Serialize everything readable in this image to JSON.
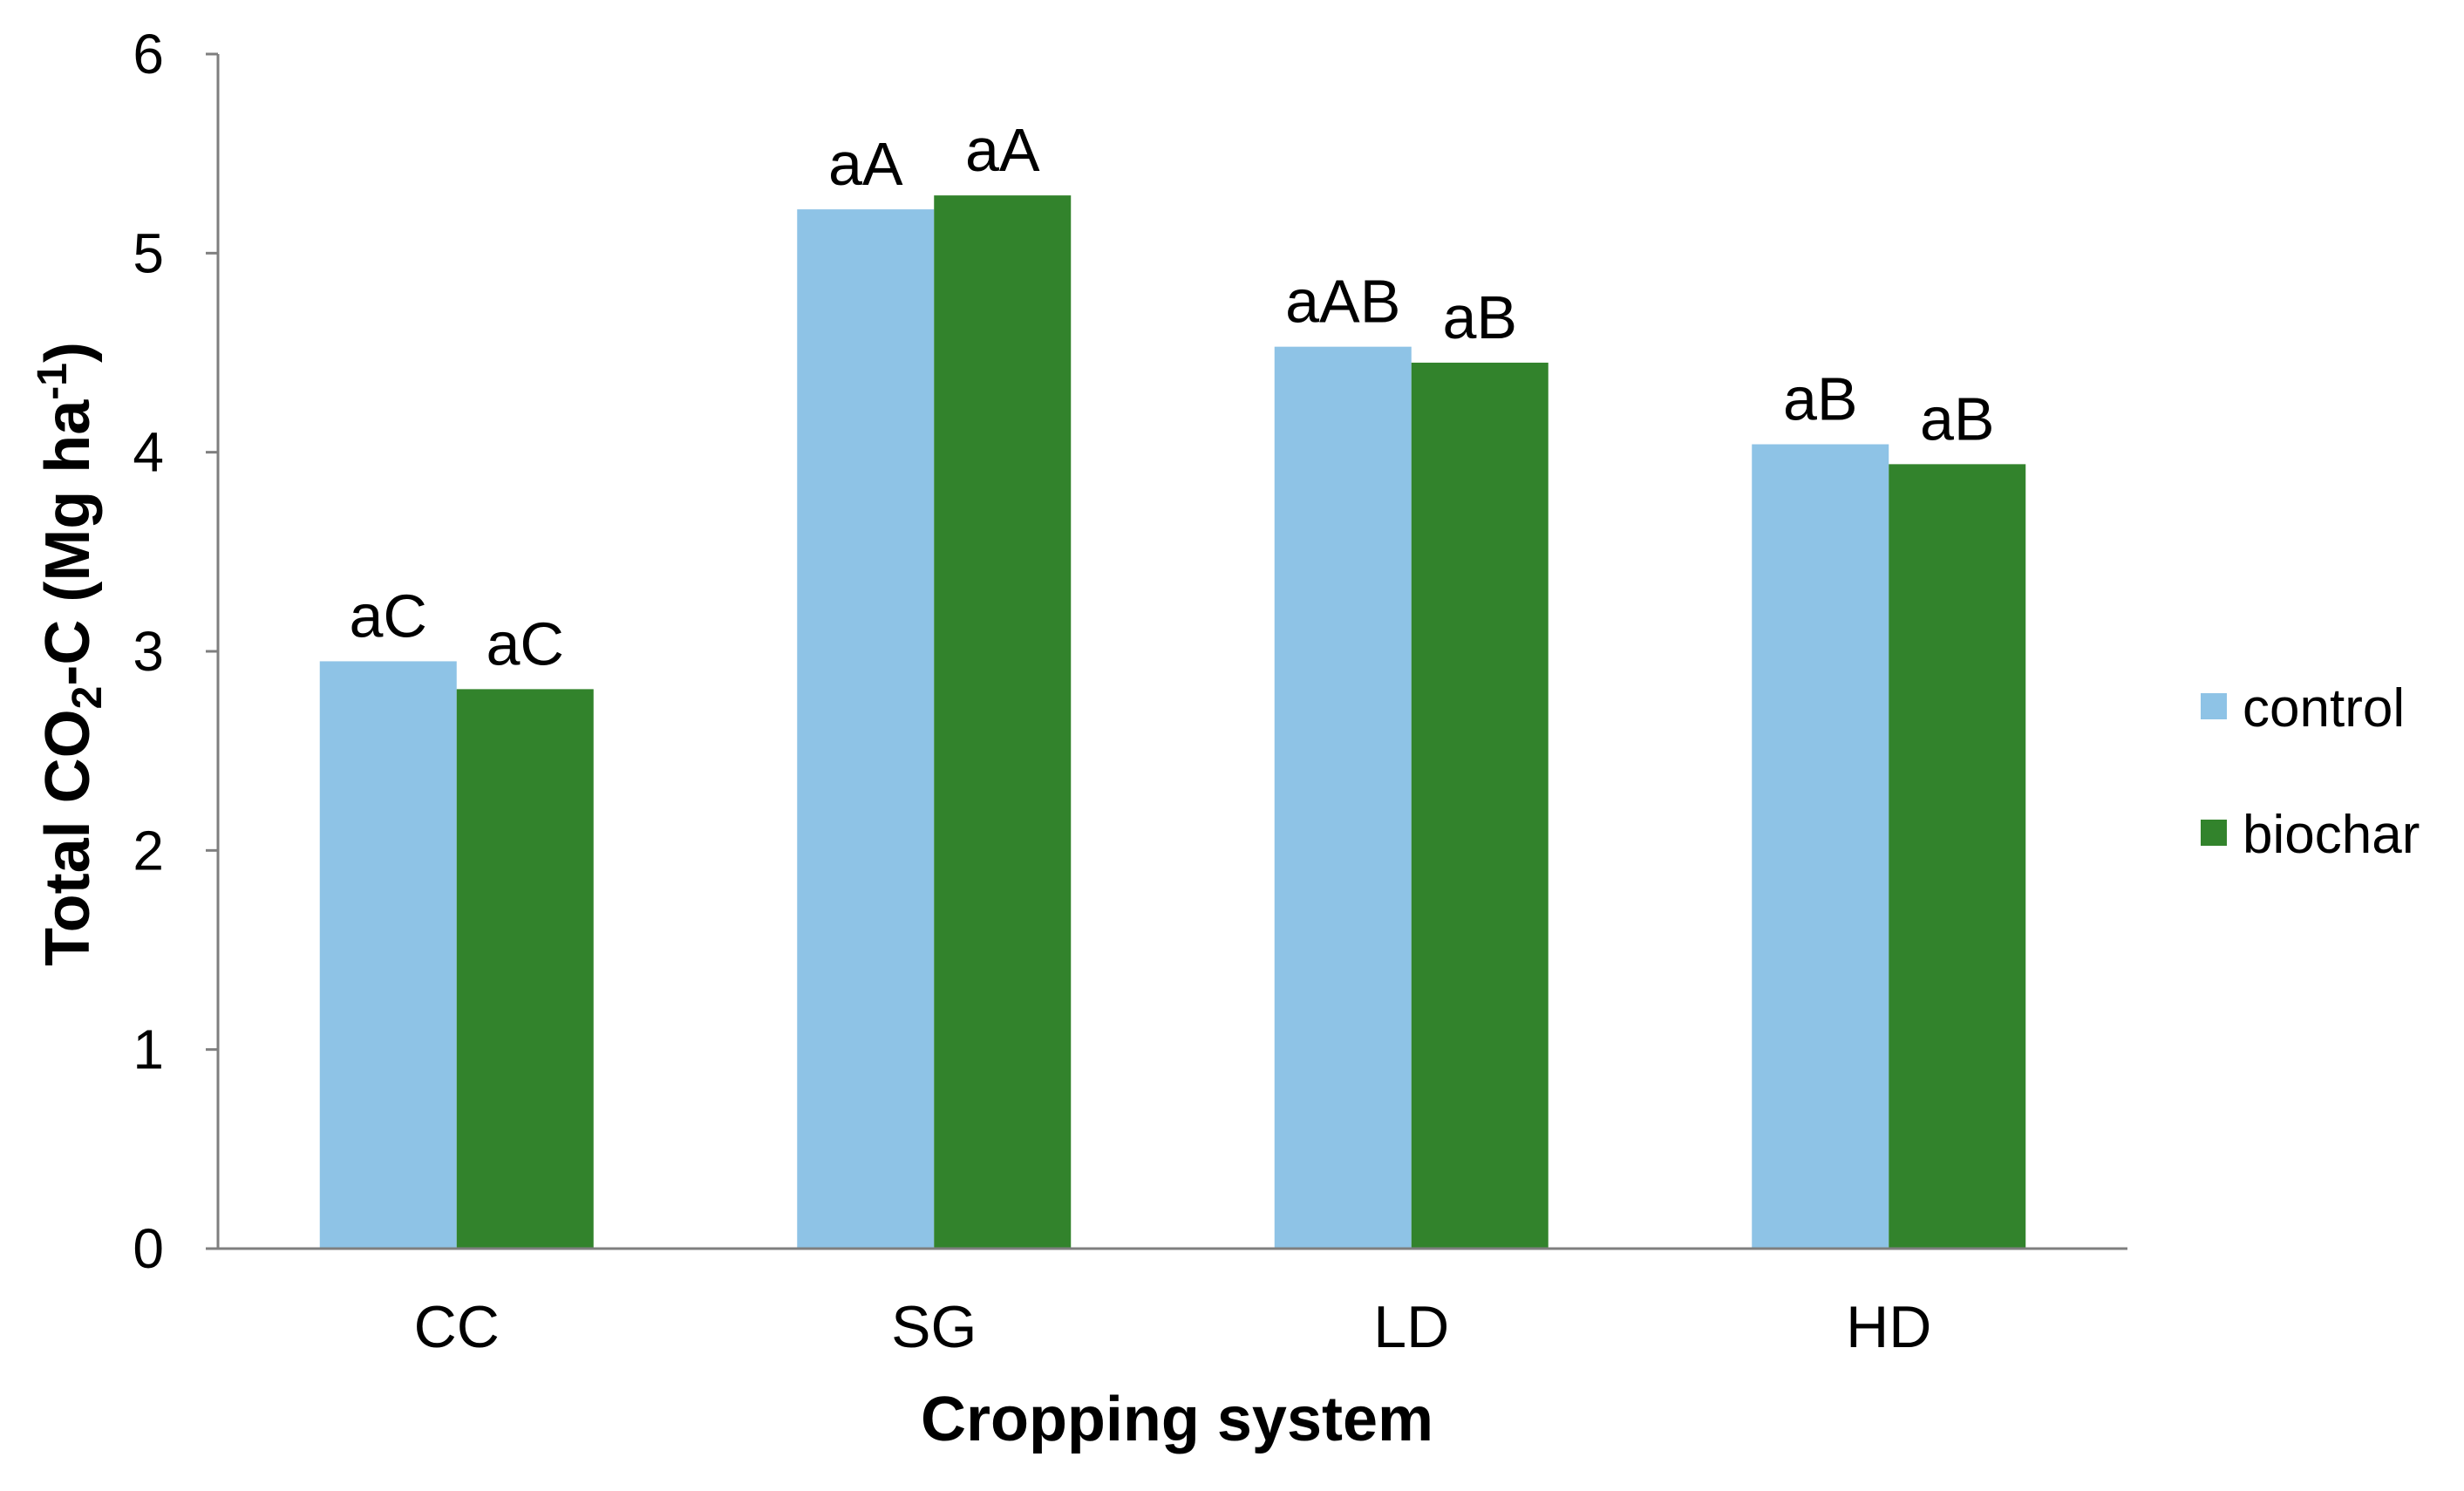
{
  "chart_data": {
    "type": "bar",
    "title": "",
    "xlabel": "Cropping system",
    "ylabel": {
      "prefix": "Total CO",
      "sub": "2",
      "middle": "-C (Mg ha",
      "sup": "-1",
      "suffix": ")"
    },
    "categories": [
      "CC",
      "SG",
      "LD",
      "HD"
    ],
    "ylim": [
      0,
      6
    ],
    "yticks": [
      0,
      1,
      2,
      3,
      4,
      5,
      6
    ],
    "grid": false,
    "legend_position": "right",
    "series": [
      {
        "name": "control",
        "color": "#8ec3e6",
        "values": [
          2.95,
          5.22,
          4.53,
          4.04
        ],
        "labels": [
          "aC",
          "aA",
          "aAB",
          "aB"
        ]
      },
      {
        "name": "biochar",
        "color": "#32832c",
        "values": [
          2.81,
          5.29,
          4.45,
          3.94
        ],
        "labels": [
          "aC",
          "aA",
          "aB",
          "aB"
        ]
      }
    ]
  },
  "colors": {
    "axis": "#7f7f7f",
    "text": "#000000",
    "background": "#ffffff"
  }
}
